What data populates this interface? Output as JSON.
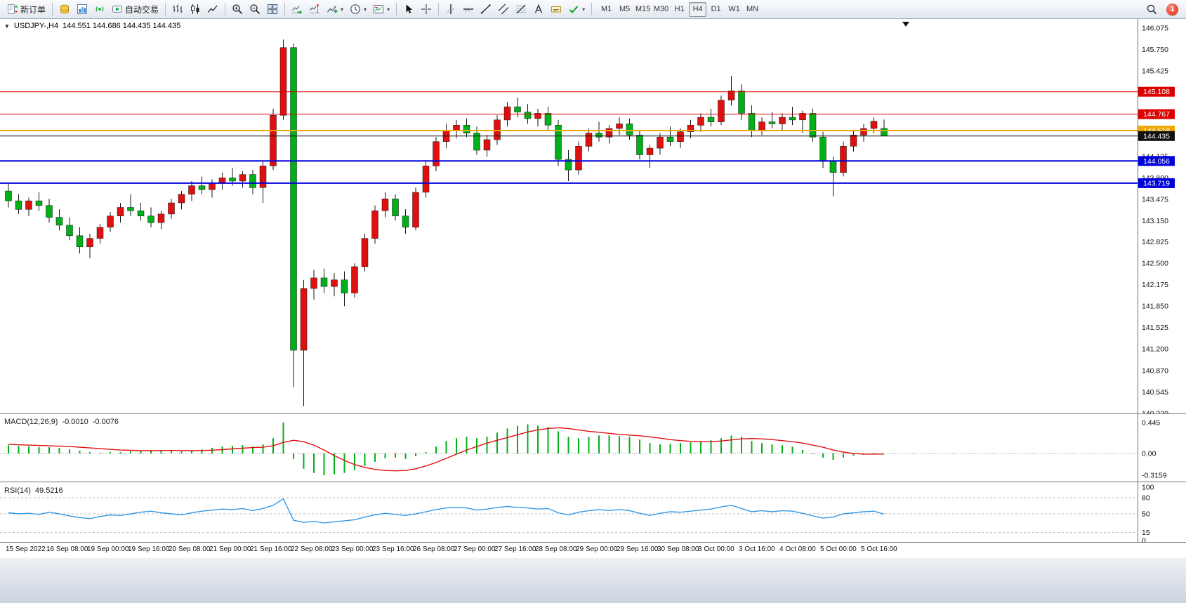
{
  "toolbar": {
    "notification_count": "1",
    "buttons": [
      {
        "name": "new-order-button",
        "icon": "new-order-icon",
        "label": "新订单"
      },
      {
        "name": "sep"
      },
      {
        "name": "market-watch-button",
        "icon": "market-watch-icon"
      },
      {
        "name": "data-window-button",
        "icon": "data-window-icon"
      },
      {
        "name": "news-button",
        "icon": "news-icon"
      },
      {
        "name": "autotrading-button",
        "icon": "autotrading-icon",
        "label": "自动交易"
      },
      {
        "name": "sep"
      },
      {
        "name": "bar-chart-button",
        "icon": "bar-chart-icon"
      },
      {
        "name": "candlestick-chart-button",
        "icon": "candlestick-icon"
      },
      {
        "name": "line-chart-button",
        "icon": "line-chart-icon"
      },
      {
        "name": "sep"
      },
      {
        "name": "zoom-in-button",
        "icon": "zoom-in-icon"
      },
      {
        "name": "zoom-out-button",
        "icon": "zoom-out-icon"
      },
      {
        "name": "tile-windows-button",
        "icon": "tile-windows-icon"
      },
      {
        "name": "sep"
      },
      {
        "name": "auto-scroll-button",
        "icon": "auto-scroll-icon"
      },
      {
        "name": "chart-shift-button",
        "icon": "chart-shift-icon"
      },
      {
        "name": "indicators-button",
        "icon": "indicators-icon",
        "caret": true
      },
      {
        "name": "periods-button",
        "icon": "clock-icon",
        "caret": true
      },
      {
        "name": "templates-button",
        "icon": "template-icon",
        "caret": true
      },
      {
        "name": "sep"
      },
      {
        "name": "cursor-button",
        "icon": "cursor-icon"
      },
      {
        "name": "crosshair-button",
        "icon": "crosshair-icon"
      },
      {
        "name": "sep"
      },
      {
        "name": "vertical-line-button",
        "icon": "vertical-line-icon"
      },
      {
        "name": "horizontal-line-button",
        "icon": "horizontal-line-icon"
      },
      {
        "name": "trendline-button",
        "icon": "trendline-icon"
      },
      {
        "name": "equidistant-channel-button",
        "icon": "channel-icon"
      },
      {
        "name": "fibonacci-button",
        "icon": "fibonacci-icon"
      },
      {
        "name": "text-button",
        "icon": "text-icon"
      },
      {
        "name": "text-label-button",
        "icon": "text-label-icon"
      },
      {
        "name": "arrows-button",
        "icon": "arrows-icon",
        "caret": true
      },
      {
        "name": "sep"
      }
    ],
    "timeframes": [
      "M1",
      "M5",
      "M15",
      "M30",
      "H1",
      "H4",
      "D1",
      "W1",
      "MN"
    ],
    "active_timeframe": "H4"
  },
  "chart": {
    "title_symbol": "USDJPY-,H4",
    "title_ohlc": "144.551 144.686 144.435 144.435",
    "up_color": "#e01010",
    "down_color": "#00b018",
    "wick_color": "#151515",
    "ylim": [
      140.21,
      146.21
    ],
    "price_axis_labels": [
      "146.075",
      "145.750",
      "145.425",
      "144.125",
      "143.800",
      "143.475",
      "143.150",
      "142.825",
      "142.500",
      "142.175",
      "141.850",
      "141.525",
      "141.200",
      "140.870",
      "140.545",
      "140.220"
    ],
    "hlines": [
      {
        "price": "145.108",
        "color": "#dd0000",
        "width": 1
      },
      {
        "price": "144.767",
        "color": "#dd0000",
        "width": 1
      },
      {
        "price": "144.518",
        "color": "#efa800",
        "width": 2
      },
      {
        "price": "144.435",
        "color": "#111111",
        "width": 1
      },
      {
        "price": "144.056",
        "color": "#0000dd",
        "width": 2
      },
      {
        "price": "143.719",
        "color": "#0000dd",
        "width": 2
      }
    ],
    "time_labels": [
      "15 Sep 2022",
      "16 Sep 08:00",
      "19 Sep 00:00",
      "19 Sep 16:00",
      "20 Sep 08:00",
      "21 Sep 00:00",
      "21 Sep 16:00",
      "22 Sep 08:00",
      "23 Sep 00:00",
      "23 Sep 16:00",
      "26 Sep 08:00",
      "27 Sep 00:00",
      "27 Sep 16:00",
      "28 Sep 08:00",
      "29 Sep 00:00",
      "29 Sep 16:00",
      "30 Sep 08:00",
      "3 Oct 00:00",
      "3 Oct 16:00",
      "4 Oct 08:00",
      "5 Oct 00:00",
      "5 Oct 16:00"
    ],
    "candles": [
      [
        143.6,
        143.72,
        143.35,
        143.45
      ],
      [
        143.45,
        143.55,
        143.25,
        143.32
      ],
      [
        143.32,
        143.5,
        143.22,
        143.45
      ],
      [
        143.45,
        143.58,
        143.3,
        143.38
      ],
      [
        143.38,
        143.48,
        143.12,
        143.2
      ],
      [
        143.2,
        143.32,
        143.0,
        143.08
      ],
      [
        143.08,
        143.2,
        142.85,
        142.92
      ],
      [
        142.92,
        143.05,
        142.65,
        142.75
      ],
      [
        142.75,
        142.95,
        142.58,
        142.88
      ],
      [
        142.88,
        143.1,
        142.8,
        143.05
      ],
      [
        143.05,
        143.28,
        142.98,
        143.22
      ],
      [
        143.22,
        143.42,
        143.12,
        143.35
      ],
      [
        143.35,
        143.55,
        143.22,
        143.3
      ],
      [
        143.3,
        143.42,
        143.15,
        143.22
      ],
      [
        143.22,
        143.35,
        143.05,
        143.12
      ],
      [
        143.12,
        143.3,
        143.02,
        143.25
      ],
      [
        143.25,
        143.48,
        143.18,
        143.42
      ],
      [
        143.42,
        143.6,
        143.32,
        143.55
      ],
      [
        143.55,
        143.75,
        143.45,
        143.68
      ],
      [
        143.68,
        143.82,
        143.55,
        143.62
      ],
      [
        143.62,
        143.78,
        143.5,
        143.72
      ],
      [
        143.72,
        143.88,
        143.62,
        143.8
      ],
      [
        143.8,
        143.95,
        143.68,
        143.75
      ],
      [
        143.75,
        143.9,
        143.65,
        143.85
      ],
      [
        143.85,
        143.92,
        143.55,
        143.65
      ],
      [
        143.65,
        144.05,
        143.42,
        143.98
      ],
      [
        143.98,
        144.85,
        143.92,
        144.75
      ],
      [
        144.75,
        145.9,
        144.68,
        145.78
      ],
      [
        145.78,
        145.84,
        140.62,
        141.18
      ],
      [
        141.18,
        142.25,
        140.33,
        142.12
      ],
      [
        142.12,
        142.4,
        141.95,
        142.28
      ],
      [
        142.28,
        142.42,
        142.05,
        142.15
      ],
      [
        142.15,
        142.35,
        142.0,
        142.25
      ],
      [
        142.25,
        142.38,
        141.85,
        142.05
      ],
      [
        142.05,
        142.5,
        141.98,
        142.45
      ],
      [
        142.45,
        142.95,
        142.38,
        142.88
      ],
      [
        142.88,
        143.38,
        142.8,
        143.3
      ],
      [
        143.3,
        143.58,
        143.2,
        143.48
      ],
      [
        143.48,
        143.55,
        143.15,
        143.22
      ],
      [
        143.22,
        143.32,
        142.95,
        143.05
      ],
      [
        143.05,
        143.65,
        143.0,
        143.58
      ],
      [
        143.58,
        144.05,
        143.5,
        143.98
      ],
      [
        143.98,
        144.42,
        143.9,
        144.35
      ],
      [
        144.35,
        144.62,
        144.25,
        144.52
      ],
      [
        144.52,
        144.68,
        144.4,
        144.6
      ],
      [
        144.6,
        144.7,
        144.42,
        144.48
      ],
      [
        144.48,
        144.58,
        144.15,
        144.22
      ],
      [
        144.22,
        144.45,
        144.12,
        144.38
      ],
      [
        144.38,
        144.75,
        144.3,
        144.68
      ],
      [
        144.68,
        144.95,
        144.58,
        144.88
      ],
      [
        144.88,
        145.02,
        144.72,
        144.8
      ],
      [
        144.8,
        144.92,
        144.62,
        144.7
      ],
      [
        144.7,
        144.85,
        144.58,
        144.78
      ],
      [
        144.78,
        144.88,
        144.52,
        144.6
      ],
      [
        144.6,
        144.68,
        143.98,
        144.08
      ],
      [
        144.08,
        144.22,
        143.75,
        143.92
      ],
      [
        143.92,
        144.35,
        143.85,
        144.28
      ],
      [
        144.28,
        144.55,
        144.2,
        144.48
      ],
      [
        144.48,
        144.65,
        144.35,
        144.42
      ],
      [
        144.42,
        144.6,
        144.32,
        144.55
      ],
      [
        144.55,
        144.72,
        144.45,
        144.62
      ],
      [
        144.62,
        144.7,
        144.38,
        144.45
      ],
      [
        144.45,
        144.52,
        144.08,
        144.15
      ],
      [
        144.15,
        144.3,
        143.95,
        144.25
      ],
      [
        144.25,
        144.48,
        144.15,
        144.42
      ],
      [
        144.42,
        144.58,
        144.28,
        144.35
      ],
      [
        144.35,
        144.55,
        144.25,
        144.5
      ],
      [
        144.5,
        144.68,
        144.4,
        144.6
      ],
      [
        144.6,
        144.78,
        144.5,
        144.72
      ],
      [
        144.72,
        144.85,
        144.58,
        144.65
      ],
      [
        144.65,
        145.05,
        144.6,
        144.98
      ],
      [
        144.98,
        145.35,
        144.9,
        145.12
      ],
      [
        145.12,
        145.22,
        144.68,
        144.78
      ],
      [
        144.78,
        144.9,
        144.42,
        144.52
      ],
      [
        144.52,
        144.72,
        144.45,
        144.65
      ],
      [
        144.65,
        144.8,
        144.55,
        144.62
      ],
      [
        144.62,
        144.78,
        144.52,
        144.72
      ],
      [
        144.72,
        144.88,
        144.6,
        144.68
      ],
      [
        144.68,
        144.82,
        144.48,
        144.78
      ],
      [
        144.78,
        144.85,
        144.35,
        144.42
      ],
      [
        144.42,
        144.5,
        143.95,
        144.05
      ],
      [
        144.05,
        144.12,
        143.52,
        143.88
      ],
      [
        143.88,
        144.35,
        143.82,
        144.28
      ],
      [
        144.28,
        144.52,
        144.2,
        144.45
      ],
      [
        144.45,
        144.62,
        144.35,
        144.55
      ],
      [
        144.55,
        144.72,
        144.48,
        144.66
      ],
      [
        144.551,
        144.686,
        144.435,
        144.435
      ]
    ]
  },
  "macd": {
    "label": "MACD(12,26,9)",
    "value_main": "-0.0010",
    "value_signal": "-0.0076",
    "axis_labels": [
      "0.445",
      "0.00",
      "-0.3159"
    ],
    "hist_color": "#00b018",
    "signal_color": "#e01010",
    "histogram": [
      0.12,
      0.11,
      0.1,
      0.09,
      0.09,
      0.08,
      0.06,
      0.04,
      0.02,
      0.01,
      0.02,
      0.02,
      0.03,
      0.04,
      0.05,
      0.05,
      0.04,
      0.03,
      0.04,
      0.06,
      0.08,
      0.1,
      0.11,
      0.12,
      0.1,
      0.13,
      0.22,
      0.445,
      -0.08,
      -0.22,
      -0.28,
      -0.3159,
      -0.3,
      -0.28,
      -0.24,
      -0.18,
      -0.12,
      -0.07,
      -0.06,
      -0.08,
      -0.04,
      0.02,
      0.1,
      0.18,
      0.22,
      0.24,
      0.22,
      0.24,
      0.3,
      0.36,
      0.4,
      0.42,
      0.4,
      0.38,
      0.32,
      0.24,
      0.22,
      0.24,
      0.26,
      0.26,
      0.25,
      0.24,
      0.2,
      0.15,
      0.13,
      0.14,
      0.15,
      0.16,
      0.17,
      0.19,
      0.22,
      0.26,
      0.24,
      0.18,
      0.15,
      0.13,
      0.12,
      0.1,
      0.05,
      -0.01,
      -0.06,
      -0.09,
      -0.06,
      -0.03,
      -0.02,
      -0.015,
      -0.001
    ],
    "signal": [
      0.13,
      0.125,
      0.12,
      0.115,
      0.11,
      0.105,
      0.1,
      0.09,
      0.08,
      0.07,
      0.06,
      0.05,
      0.045,
      0.04,
      0.04,
      0.042,
      0.043,
      0.042,
      0.04,
      0.042,
      0.048,
      0.056,
      0.066,
      0.076,
      0.085,
      0.09,
      0.11,
      0.16,
      0.19,
      0.17,
      0.12,
      0.05,
      -0.03,
      -0.1,
      -0.16,
      -0.2,
      -0.23,
      -0.245,
      -0.25,
      -0.245,
      -0.22,
      -0.18,
      -0.13,
      -0.07,
      -0.01,
      0.05,
      0.1,
      0.15,
      0.19,
      0.23,
      0.27,
      0.31,
      0.34,
      0.36,
      0.37,
      0.36,
      0.34,
      0.32,
      0.305,
      0.29,
      0.275,
      0.265,
      0.255,
      0.24,
      0.22,
      0.2,
      0.185,
      0.175,
      0.17,
      0.17,
      0.18,
      0.195,
      0.21,
      0.215,
      0.21,
      0.2,
      0.185,
      0.17,
      0.15,
      0.12,
      0.09,
      0.05,
      0.02,
      0.0,
      -0.008,
      -0.009,
      -0.0076
    ]
  },
  "rsi": {
    "label": "RSI(14)",
    "value": "49.5216",
    "axis_labels": [
      "100",
      "80",
      "50",
      "15",
      "0"
    ],
    "levels": [
      80,
      50,
      15
    ],
    "line_color": "#3399e6",
    "values": [
      52,
      50,
      51,
      49,
      53,
      50,
      46,
      43,
      41,
      45,
      48,
      47,
      50,
      53,
      55,
      52,
      50,
      48,
      52,
      55,
      57,
      59,
      58,
      60,
      56,
      60,
      66,
      78,
      38,
      34,
      36,
      33,
      35,
      37,
      39,
      44,
      48,
      51,
      49,
      47,
      50,
      54,
      58,
      61,
      62,
      61,
      57,
      59,
      62,
      64,
      62,
      61,
      59,
      60,
      52,
      48,
      53,
      56,
      58,
      56,
      58,
      56,
      51,
      47,
      51,
      54,
      53,
      55,
      57,
      59,
      63,
      66,
      60,
      54,
      56,
      54,
      56,
      55,
      51,
      46,
      42,
      44,
      50,
      52,
      54,
      55,
      49.52
    ]
  }
}
